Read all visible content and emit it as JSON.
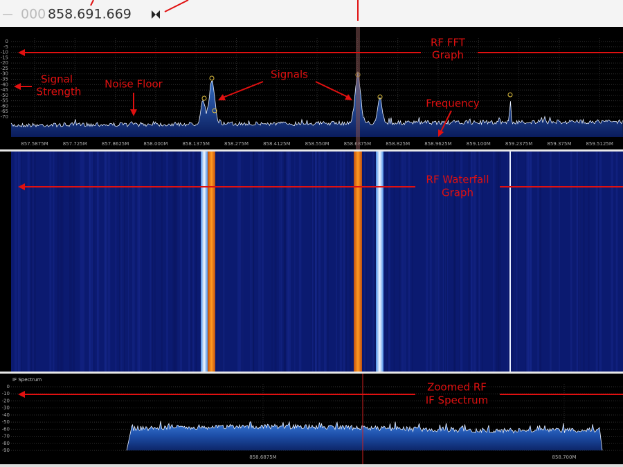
{
  "toolbar": {
    "frequency_prefix": "000",
    "frequency": "858.691.669"
  },
  "fft": {
    "yticks": [
      0,
      -5,
      -10,
      -15,
      -20,
      -25,
      -30,
      -35,
      -40,
      -45,
      -50,
      -55,
      -60,
      -65,
      -70
    ],
    "xticks": [
      "857.5875M",
      "857.725M",
      "857.8625M",
      "858.000M",
      "858.1375M",
      "858.275M",
      "858.4125M",
      "858.550M",
      "858.6875M",
      "858.825M",
      "858.9625M",
      "859.100M",
      "859.2375M",
      "859.375M",
      "859.5125M"
    ]
  },
  "if_spectrum": {
    "title": "IF Spectrum",
    "yticks": [
      0,
      -10,
      -20,
      -30,
      -40,
      -50,
      -60,
      -70,
      -80,
      -90
    ],
    "xticks": [
      "858.6875M",
      "858.700M"
    ]
  },
  "annotations": {
    "rf_fft": [
      "RF FFT",
      "Graph"
    ],
    "signal_strength": [
      "Signal",
      "Strength"
    ],
    "noise_floor": "Noise Floor",
    "signals": "Signals",
    "frequency": "Frequency",
    "rf_waterfall": [
      "RF Waterfall",
      "Graph"
    ],
    "zoomed_rf": [
      "Zoomed RF",
      "IF Spectrum"
    ]
  }
}
